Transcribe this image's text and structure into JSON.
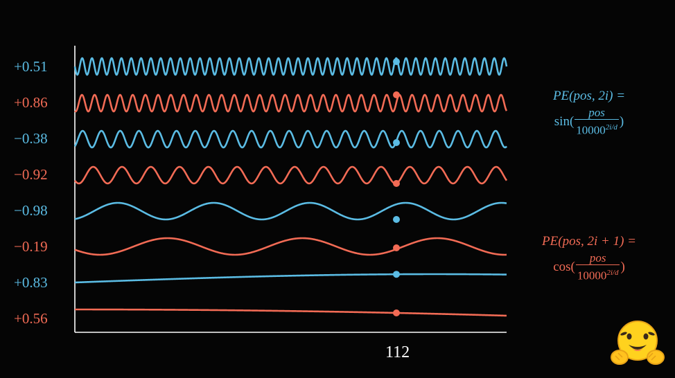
{
  "colors": {
    "sin": "#5bbce4",
    "cos": "#f26b55",
    "axis": "#ffffff",
    "background": "#050505"
  },
  "rows": [
    {
      "label": "+0.51",
      "color": "sin"
    },
    {
      "label": "+0.86",
      "color": "cos"
    },
    {
      "label": "−0.38",
      "color": "sin"
    },
    {
      "label": "−0.92",
      "color": "cos"
    },
    {
      "label": "−0.98",
      "color": "sin"
    },
    {
      "label": "−0.19",
      "color": "cos"
    },
    {
      "label": "+0.83",
      "color": "sin"
    },
    {
      "label": "+0.56",
      "color": "cos"
    }
  ],
  "x_marker": "112",
  "formula_sin": {
    "lhs": "PE(pos, 2i) =",
    "fn": "sin(",
    "num": "pos",
    "den": "10000",
    "exp": "2i/d",
    "close": ")"
  },
  "formula_cos": {
    "lhs": "PE(pos, 2i + 1) =",
    "fn": "cos(",
    "num": "pos",
    "den": "10000",
    "exp": "2i/d",
    "close": ")"
  },
  "icons": {
    "mascot": "hugging-face-emoji-icon"
  }
}
